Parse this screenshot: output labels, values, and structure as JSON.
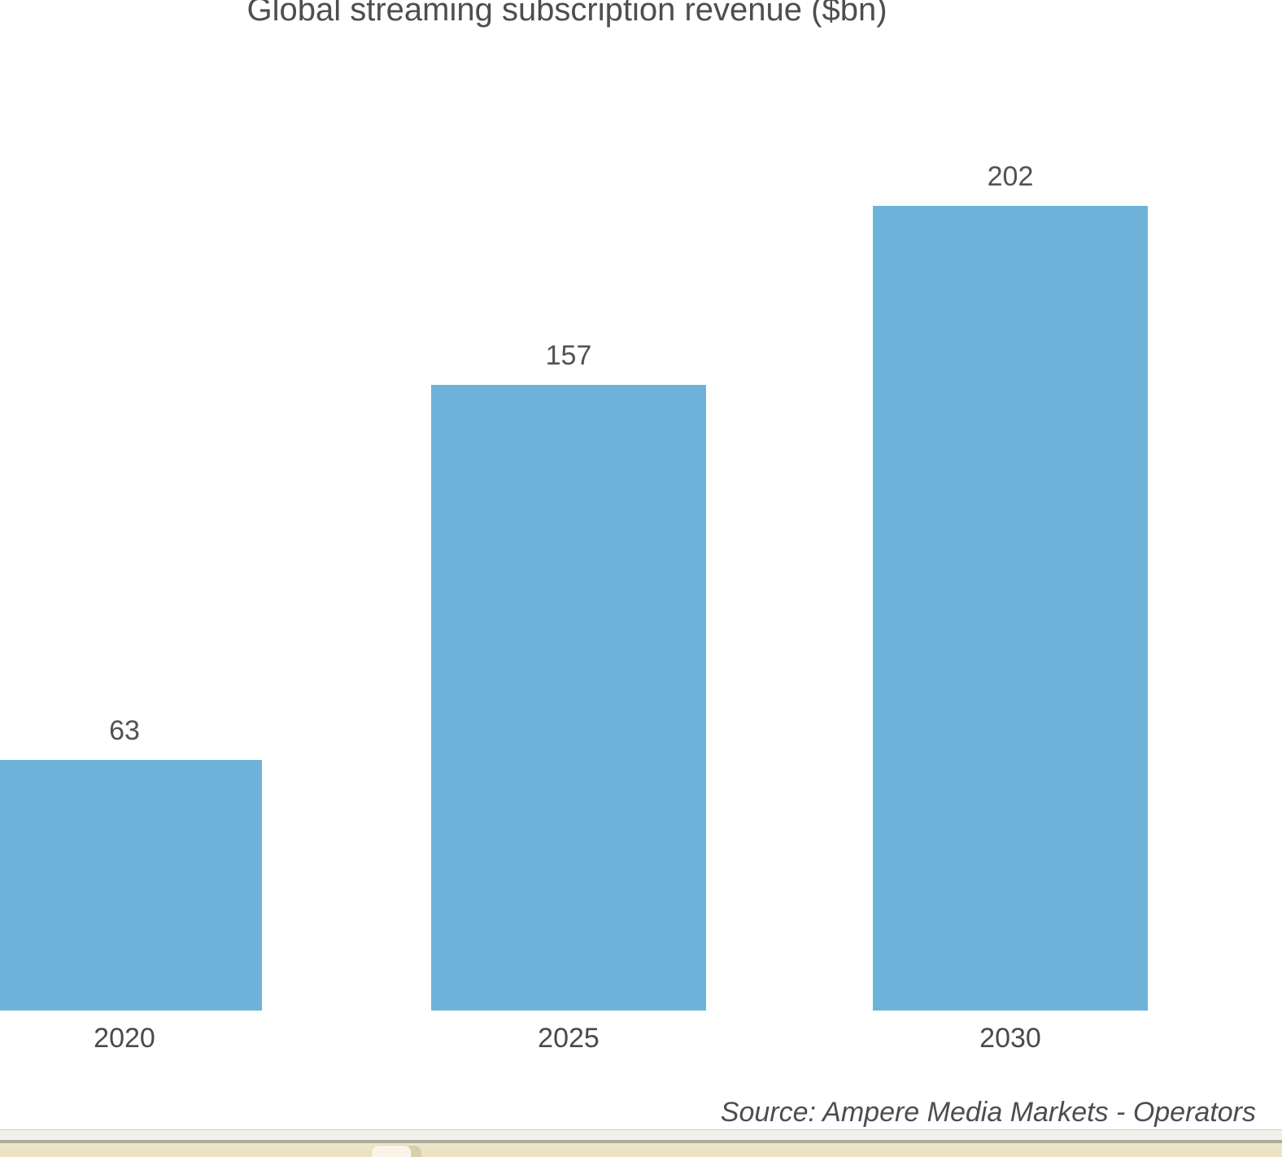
{
  "chart_data": {
    "type": "bar",
    "title": "Global streaming subscription revenue ($bn)",
    "categories": [
      "2020",
      "2025",
      "2030"
    ],
    "values": [
      63,
      157,
      202
    ],
    "xlabel": "",
    "ylabel": "",
    "ylim": [
      0,
      202
    ],
    "grid": false,
    "legend": false,
    "data_labels_shown": true,
    "bar_color": "#6DB3D9",
    "title_color": "#4E4E50",
    "label_color": "#4A4A4C",
    "source": "Source: Ampere Media Markets - Operators"
  },
  "window_edge": {
    "strip_color": "#F1F0EC",
    "divider_color": "#AFAB9B",
    "titlebar_color": "#ECE4C5",
    "button_color": "#F9F4E7"
  }
}
